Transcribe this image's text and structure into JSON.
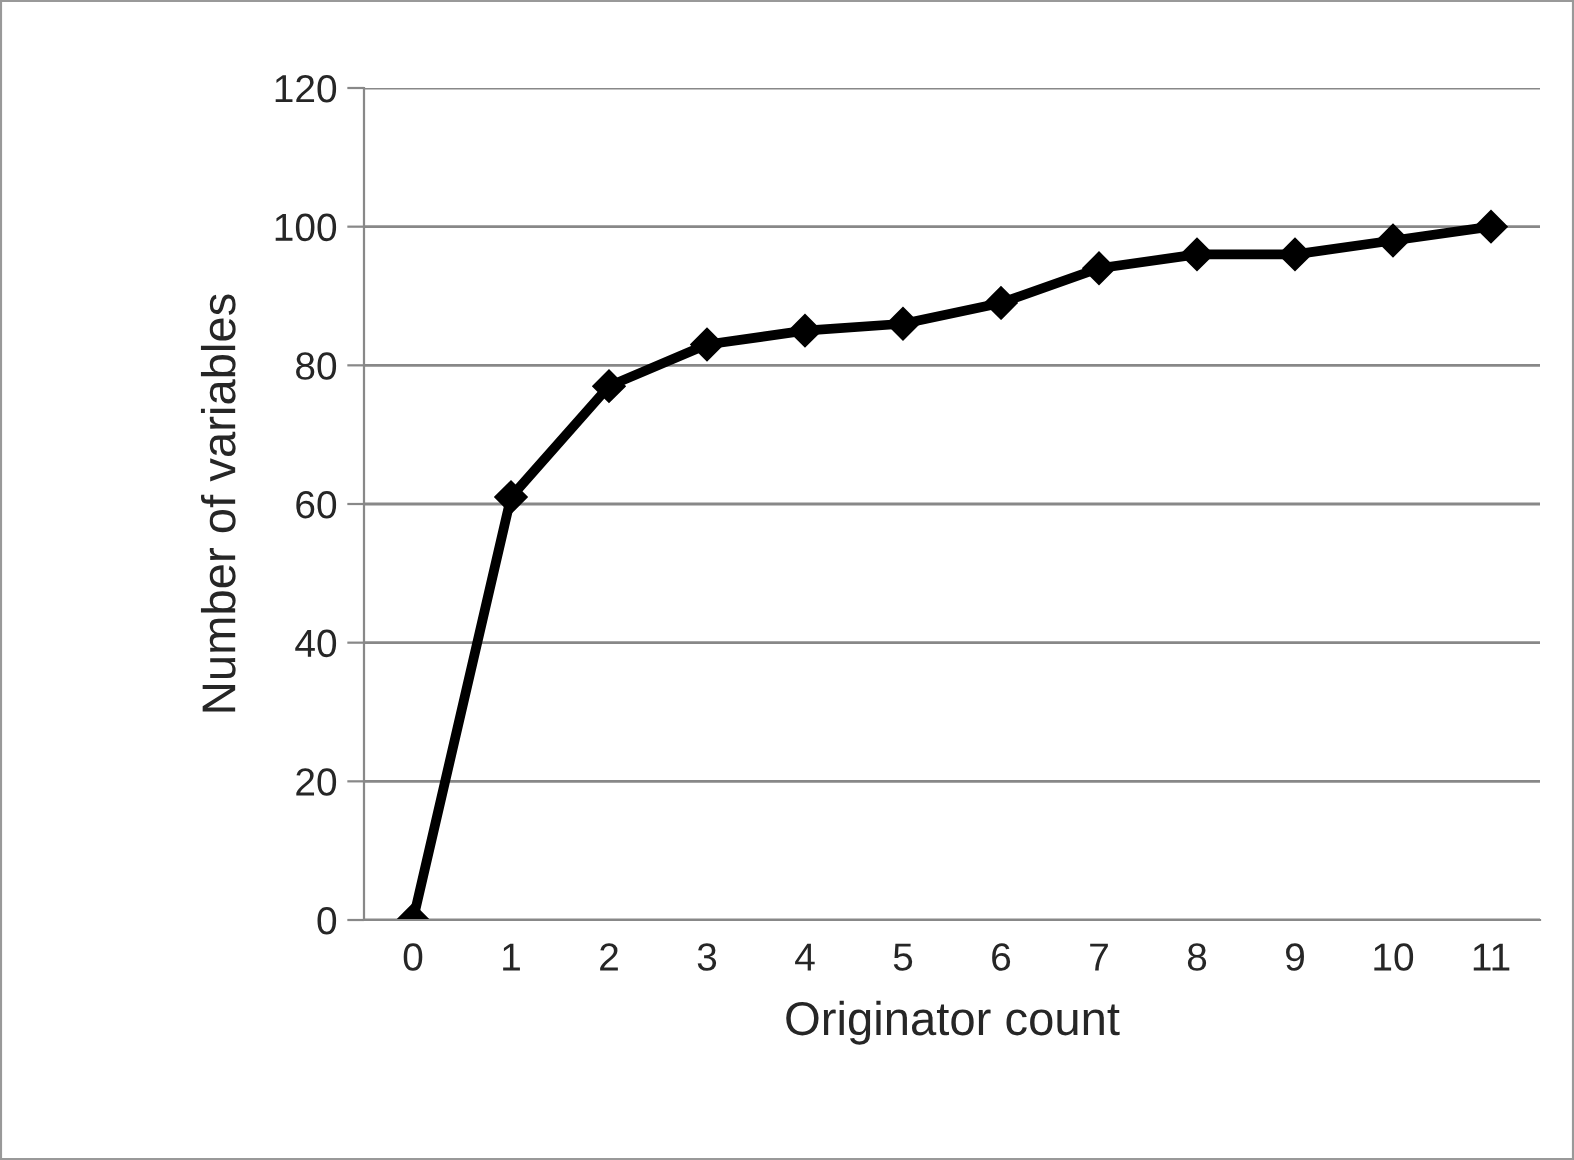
{
  "chart_data": {
    "type": "line",
    "xlabel": "Originator count",
    "ylabel": "Number of variables",
    "categories": [
      "0",
      "1",
      "2",
      "3",
      "4",
      "5",
      "6",
      "7",
      "8",
      "9",
      "10",
      "11"
    ],
    "series": [
      {
        "color": "#000000",
        "values": [
          0,
          61,
          77,
          83,
          85,
          86,
          89,
          94,
          96,
          96,
          98,
          100
        ]
      }
    ],
    "ylim": [
      0,
      120
    ],
    "yticks": [
      0,
      20,
      40,
      60,
      80,
      100,
      120
    ],
    "grid": "y",
    "marker": "diamond",
    "line_style": "solid"
  }
}
